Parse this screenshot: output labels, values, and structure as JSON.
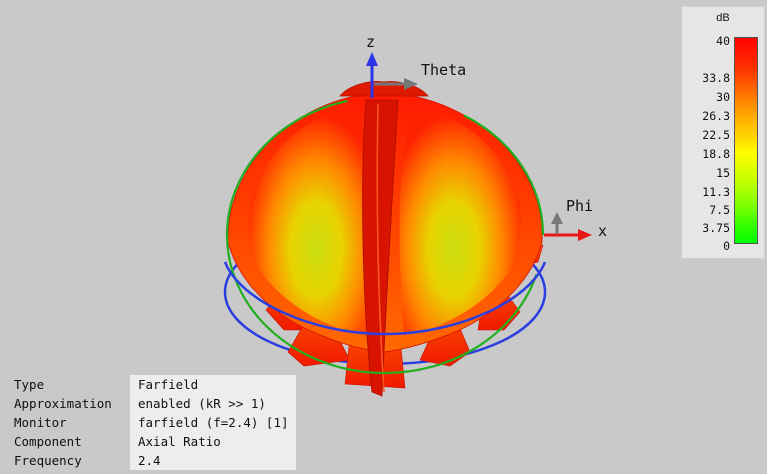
{
  "axes": {
    "z_label": "z",
    "theta_label": "Theta",
    "phi_label": "Phi",
    "x_label": "x"
  },
  "legend": {
    "unit": "dB",
    "ticks": [
      "40",
      "33.8",
      "30",
      "26.3",
      "22.5",
      "18.8",
      "15",
      "11.3",
      "7.5",
      "3.75",
      "0"
    ],
    "colors": {
      "top": "#ff0000",
      "mid": "#ffff00",
      "bottom": "#00ff00"
    }
  },
  "info": [
    {
      "key": "Type",
      "value": "Farfield"
    },
    {
      "key": "Approximation",
      "value": "enabled (kR >> 1)"
    },
    {
      "key": "Monitor",
      "value": "farfield (f=2.4) [1]"
    },
    {
      "key": "Component",
      "value": "Axial Ratio"
    },
    {
      "key": "Frequency",
      "value": "2.4"
    }
  ]
}
